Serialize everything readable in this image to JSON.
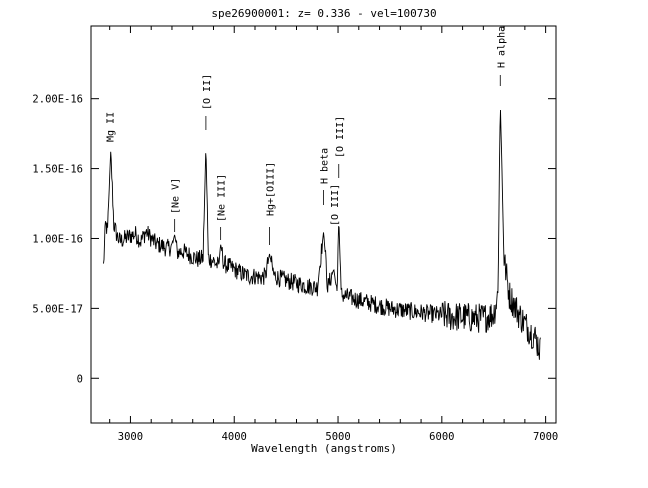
{
  "chart_data": {
    "type": "line",
    "title": "spe26900001: z= 0.336 - vel=100730",
    "xlabel": "Wavelength (angstroms)",
    "ylabel": "",
    "xlim": [
      2620,
      7100
    ],
    "ylim": [
      -3.2e-17,
      2.52e-16
    ],
    "x_ticks": [
      3000,
      4000,
      5000,
      6000,
      7000
    ],
    "x_tick_labels": [
      "3000",
      "4000",
      "5000",
      "6000",
      "7000"
    ],
    "y_ticks": [
      0,
      5e-17,
      1e-16,
      1.5e-16,
      2e-16
    ],
    "y_tick_labels": [
      "0",
      "5.00E-17",
      "1.00E-16",
      "1.50E-16",
      "2.00E-16"
    ],
    "grid": false,
    "legend": "none",
    "line_color": "#000000",
    "spectrum": {
      "x": [
        2740,
        2760,
        2780,
        2800,
        2810,
        2820,
        2840,
        2870,
        2900,
        2950,
        3000,
        3050,
        3100,
        3150,
        3200,
        3250,
        3300,
        3350,
        3400,
        3426,
        3450,
        3500,
        3550,
        3600,
        3650,
        3700,
        3727,
        3750,
        3800,
        3850,
        3869,
        3900,
        3950,
        4000,
        4050,
        4100,
        4150,
        4200,
        4250,
        4300,
        4340,
        4380,
        4420,
        4500,
        4600,
        4700,
        4800,
        4861,
        4900,
        4959,
        4990,
        5007,
        5030,
        5100,
        5200,
        5300,
        5400,
        5500,
        5600,
        5700,
        5800,
        5900,
        6000,
        6100,
        6200,
        6300,
        6400,
        6500,
        6540,
        6563,
        6600,
        6650,
        6700,
        6750,
        6800,
        6850,
        6900,
        6950
      ],
      "y": [
        8e-17,
        1.1e-16,
        1.05e-16,
        1.45e-16,
        1.62e-16,
        1.45e-16,
        1.1e-16,
        1.02e-16,
        9.8e-17,
        1e-16,
        1.02e-16,
        1.03e-16,
        9.8e-17,
        1.05e-16,
        1e-16,
        9.6e-17,
        9.5e-17,
        9.3e-17,
        9.4e-17,
        1.03e-16,
        9e-17,
        9.1e-17,
        8.9e-17,
        8.7e-17,
        8.5e-17,
        8.6e-17,
        1.67e-16,
        8.6e-17,
        8.4e-17,
        8e-17,
        9.6e-17,
        8.2e-17,
        8e-17,
        7.8e-17,
        7.6e-17,
        7.4e-17,
        7.3e-17,
        7.3e-17,
        7.2e-17,
        7.3e-17,
        8.9e-17,
        7.4e-17,
        7.2e-17,
        7e-17,
        6.8e-17,
        6.6e-17,
        6.5e-17,
        1.05e-16,
        6.5e-17,
        7.8e-17,
        6.2e-17,
        1.15e-16,
        6e-17,
        5.8e-17,
        5.6e-17,
        5.4e-17,
        5.2e-17,
        5e-17,
        4.9e-17,
        4.8e-17,
        4.7e-17,
        4.6e-17,
        4.5e-17,
        4.4e-17,
        4.4e-17,
        4.3e-17,
        4.3e-17,
        4.6e-17,
        6e-17,
        1.98e-16,
        8.5e-17,
        6e-17,
        5.2e-17,
        4.5e-17,
        3.9e-17,
        3.4e-17,
        2.9e-17,
        2e-17
      ]
    },
    "line_labels": [
      {
        "text": "Mg II",
        "x": 2800
      },
      {
        "text": "[Ne V]",
        "x": 3426
      },
      {
        "text": "[O II]",
        "x": 3727
      },
      {
        "text": "[Ne III]",
        "x": 3869
      },
      {
        "text": "Hg+[OIII]",
        "x": 4340
      },
      {
        "text": "[O III]",
        "x": 4959
      },
      {
        "text": "H beta",
        "x": 4861
      },
      {
        "text": "[O III]",
        "x": 5007
      },
      {
        "text": "H alpha",
        "x": 6563
      }
    ]
  }
}
